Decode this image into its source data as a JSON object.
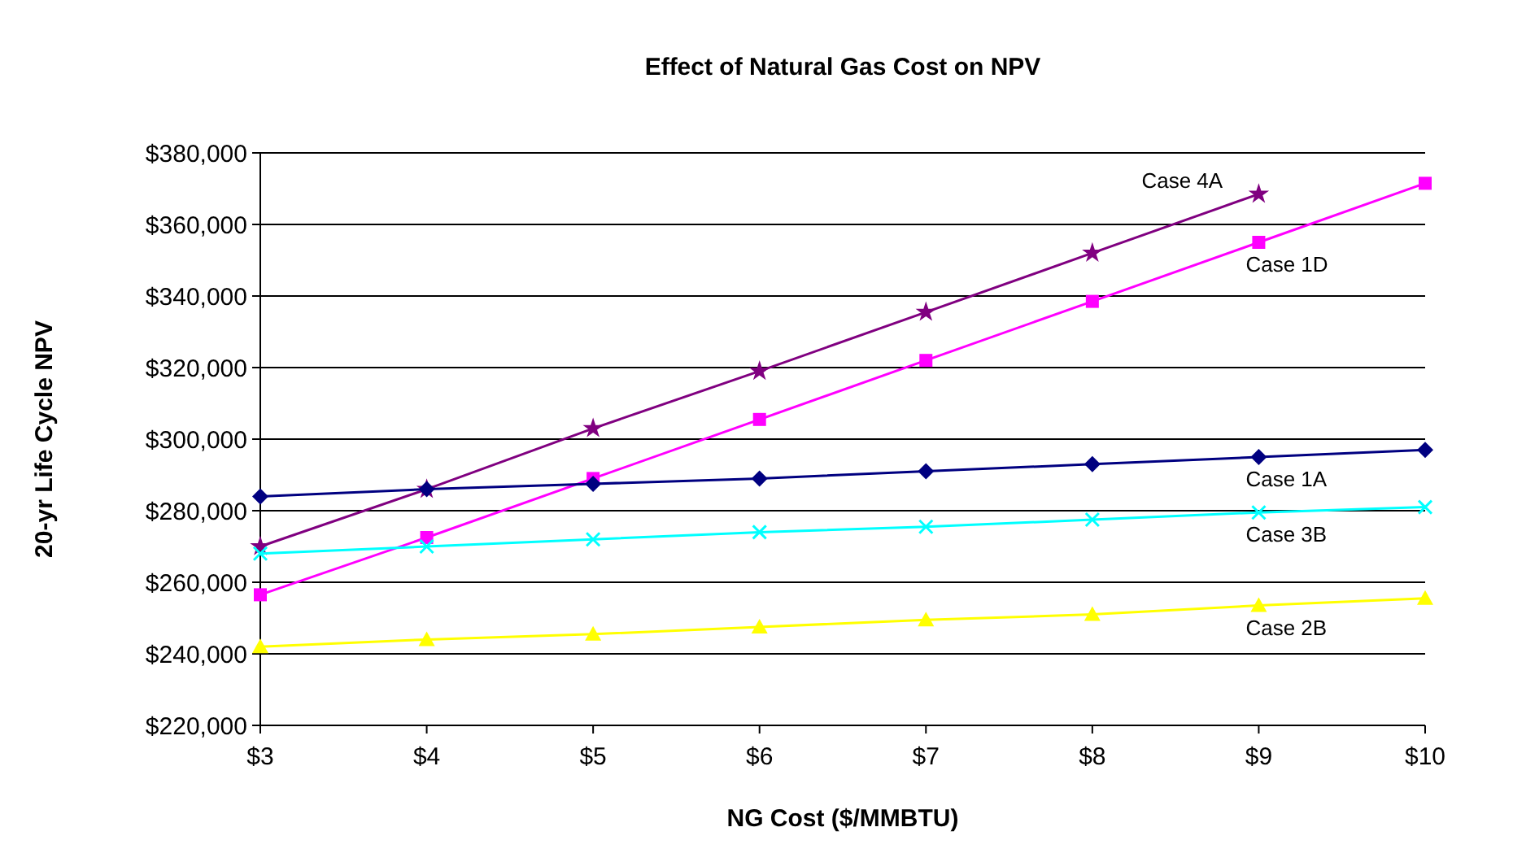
{
  "chart_data": {
    "type": "line",
    "title": "Effect of Natural Gas Cost on NPV",
    "xlabel": "NG Cost ($/MMBTU)",
    "ylabel": "20-yr Life Cycle NPV",
    "x": [
      3,
      4,
      5,
      6,
      7,
      8,
      9,
      10
    ],
    "xlim": [
      3,
      10
    ],
    "xticks": [
      {
        "value": 3,
        "label": "$3"
      },
      {
        "value": 4,
        "label": "$4"
      },
      {
        "value": 5,
        "label": "$5"
      },
      {
        "value": 6,
        "label": "$6"
      },
      {
        "value": 7,
        "label": "$7"
      },
      {
        "value": 8,
        "label": "$8"
      },
      {
        "value": 9,
        "label": "$9"
      },
      {
        "value": 10,
        "label": "$10"
      }
    ],
    "ylim": [
      220000,
      380000
    ],
    "yticks": [
      {
        "value": 220000,
        "label": "$220,000"
      },
      {
        "value": 240000,
        "label": "$240,000"
      },
      {
        "value": 260000,
        "label": "$260,000"
      },
      {
        "value": 280000,
        "label": "$280,000"
      },
      {
        "value": 300000,
        "label": "$300,000"
      },
      {
        "value": 320000,
        "label": "$320,000"
      },
      {
        "value": 340000,
        "label": "$340,000"
      },
      {
        "value": 360000,
        "label": "$360,000"
      },
      {
        "value": 380000,
        "label": "$380,000"
      }
    ],
    "grid": "y",
    "series": [
      {
        "name": "Case 4A",
        "color": "#800080",
        "marker": "star",
        "values": [
          270000,
          286000,
          303000,
          319000,
          335500,
          352000,
          368500,
          null
        ]
      },
      {
        "name": "Case 1D",
        "color": "#ff00ff",
        "marker": "square",
        "values": [
          256500,
          272500,
          289000,
          305500,
          322000,
          338500,
          355000,
          371500
        ]
      },
      {
        "name": "Case 1A",
        "color": "#000080",
        "marker": "diamond",
        "values": [
          284000,
          286000,
          287500,
          289000,
          291000,
          293000,
          295000,
          297000
        ]
      },
      {
        "name": "Case 3B",
        "color": "#00ffff",
        "marker": "cross",
        "values": [
          268000,
          270000,
          272000,
          274000,
          275500,
          277500,
          279500,
          281000
        ]
      },
      {
        "name": "Case 2B",
        "color": "#ffff00",
        "marker": "triangle",
        "values": [
          242000,
          244000,
          245500,
          247500,
          249500,
          251000,
          253500,
          255500
        ]
      }
    ]
  }
}
